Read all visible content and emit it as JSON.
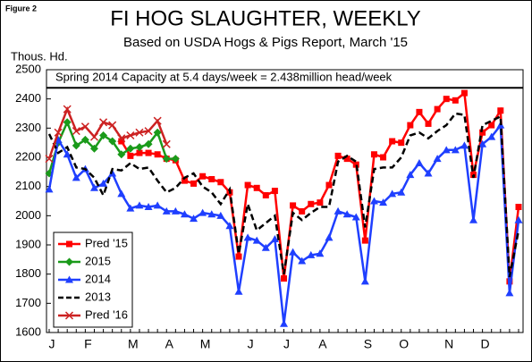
{
  "chart_data": {
    "type": "line",
    "figure_label": "Figure 2",
    "title": "FI HOG SLAUGHTER, WEEKLY",
    "subtitle": "Based on USDA Hogs & Pigs Report, March '15",
    "y_label": "Thous. Hd.",
    "annotation": "Spring 2014 Capacity at 5.4 days/week = 2.438million head/week",
    "capacity": 2438,
    "categories": [
      "J",
      null,
      null,
      null,
      "F",
      null,
      null,
      null,
      null,
      "M",
      null,
      null,
      null,
      "A",
      null,
      null,
      null,
      "M",
      null,
      null,
      null,
      null,
      "J",
      null,
      null,
      null,
      "J",
      null,
      null,
      null,
      "A",
      null,
      null,
      null,
      null,
      "S",
      null,
      null,
      null,
      "O",
      null,
      null,
      null,
      null,
      "N",
      null,
      null,
      null,
      "D",
      null,
      null,
      null,
      null
    ],
    "ylim": [
      1600,
      2500
    ],
    "yticks": [
      1600,
      1700,
      1800,
      1900,
      2000,
      2100,
      2200,
      2300,
      2400,
      2500
    ],
    "grid": false,
    "legend": "lower left",
    "series": [
      {
        "name": "Pred '15",
        "color": "#ff0000",
        "marker": "square",
        "dash": false,
        "values": [
          null,
          null,
          null,
          null,
          null,
          null,
          null,
          null,
          2255,
          2205,
          2215,
          2215,
          2210,
          2195,
          2190,
          2120,
          2110,
          2135,
          2125,
          2115,
          2080,
          1860,
          2105,
          2095,
          2070,
          2085,
          1785,
          2035,
          2015,
          2040,
          2045,
          2105,
          2205,
          2195,
          2175,
          1915,
          2210,
          2200,
          2255,
          2250,
          2310,
          2355,
          2315,
          2365,
          2400,
          2395,
          2420,
          2140,
          2285,
          2310,
          2360,
          1775,
          2030
        ]
      },
      {
        "name": "2015",
        "color": "#1a9a1a",
        "marker": "diamond",
        "dash": false,
        "values": [
          2145,
          2250,
          2320,
          2240,
          2260,
          2230,
          2275,
          2255,
          2210,
          2230,
          2235,
          2245,
          2285,
          2195,
          2195,
          null,
          null,
          null,
          null,
          null,
          null,
          null,
          null,
          null,
          null,
          null,
          null,
          null,
          null,
          null,
          null,
          null,
          null,
          null,
          null,
          null,
          null,
          null,
          null,
          null,
          null,
          null,
          null,
          null,
          null,
          null,
          null,
          null,
          null,
          null,
          null,
          null,
          null
        ]
      },
      {
        "name": "2014",
        "color": "#1f3fff",
        "marker": "triangle",
        "dash": false,
        "values": [
          2090,
          2260,
          2210,
          2130,
          2160,
          2095,
          2110,
          2145,
          2075,
          2025,
          2035,
          2030,
          2035,
          2015,
          2015,
          2005,
          1990,
          2010,
          2005,
          2000,
          1965,
          1740,
          1925,
          1915,
          1890,
          1920,
          1630,
          1875,
          1845,
          1865,
          1870,
          1925,
          2015,
          2005,
          1995,
          1775,
          2050,
          2045,
          2075,
          2080,
          2140,
          2180,
          2145,
          2195,
          2225,
          2225,
          2240,
          1985,
          2245,
          2270,
          2310,
          1735,
          1985
        ]
      },
      {
        "name": "2013",
        "color": "#000000",
        "marker": "none",
        "dash": true,
        "values": [
          2280,
          2215,
          2235,
          2165,
          2160,
          2130,
          2070,
          2160,
          2155,
          2180,
          2160,
          2165,
          2120,
          2080,
          2095,
          2130,
          2145,
          2100,
          2080,
          2040,
          2090,
          1870,
          2040,
          1950,
          1975,
          2000,
          1800,
          2010,
          1985,
          2010,
          2030,
          2030,
          2185,
          2205,
          2185,
          1960,
          2160,
          2165,
          2165,
          2200,
          2275,
          2285,
          2265,
          2290,
          2310,
          2350,
          2345,
          2130,
          2310,
          2325,
          2340,
          1790,
          1950
        ]
      },
      {
        "name": "Pred '16",
        "color": "#cc2222",
        "marker": "x",
        "dash": false,
        "values": [
          2195,
          2285,
          2365,
          2290,
          2305,
          2270,
          2320,
          2310,
          2265,
          2275,
          2285,
          2290,
          2325,
          2245,
          null,
          null,
          null,
          null,
          null,
          null,
          null,
          null,
          null,
          null,
          null,
          null,
          null,
          null,
          null,
          null,
          null,
          null,
          null,
          null,
          null,
          null,
          null,
          null,
          null,
          null,
          null,
          null,
          null,
          null,
          null,
          null,
          null,
          null,
          null,
          null,
          null,
          null,
          null
        ]
      }
    ]
  }
}
